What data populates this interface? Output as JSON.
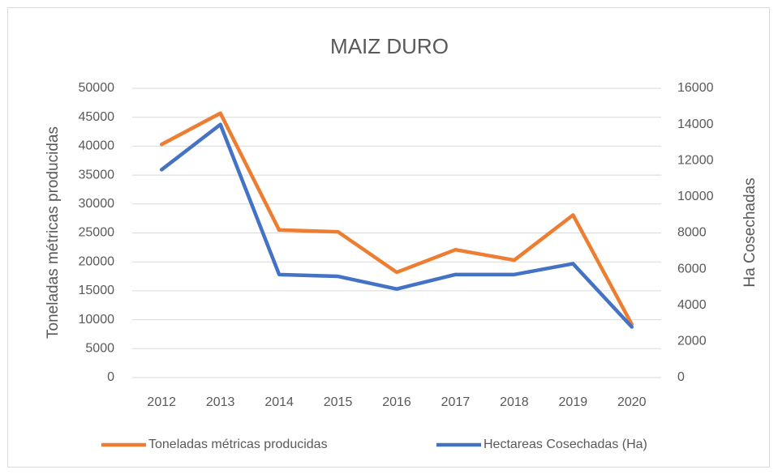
{
  "chart_data": {
    "type": "line",
    "title": "MAIZ DURO",
    "y_label": "Toneladas métricas producidas",
    "y2_label": "Ha Cosechadas",
    "categories": [
      "2012",
      "2013",
      "2014",
      "2015",
      "2016",
      "2017",
      "2018",
      "2019",
      "2020"
    ],
    "series": [
      {
        "name": "Toneladas métricas producidas",
        "color": "#ed7d31",
        "values": [
          40300,
          45700,
          25500,
          25200,
          18200,
          22100,
          20300,
          28100,
          9200
        ]
      },
      {
        "name": "Hectareas Cosechadas (Ha)",
        "color": "#4472c4",
        "axis": "y2",
        "values": [
          11500,
          14000,
          5700,
          5600,
          4900,
          5700,
          5700,
          6300,
          2800
        ]
      }
    ],
    "ylim": [
      0,
      50000
    ],
    "yticks": [
      0,
      5000,
      10000,
      15000,
      20000,
      25000,
      30000,
      35000,
      40000,
      45000,
      50000
    ],
    "y2lim": [
      0,
      16000
    ],
    "y2ticks": [
      0,
      2000,
      4000,
      6000,
      8000,
      10000,
      12000,
      14000,
      16000
    ],
    "grid": true,
    "legend": "bottom"
  }
}
